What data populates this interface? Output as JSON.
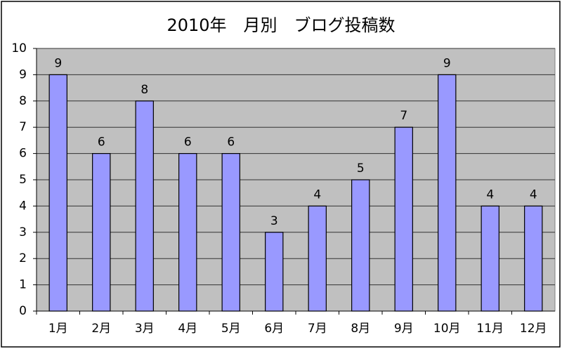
{
  "chart_data": {
    "type": "bar",
    "title": "2010年　月別　ブログ投稿数",
    "categories": [
      "1月",
      "2月",
      "3月",
      "4月",
      "5月",
      "6月",
      "7月",
      "8月",
      "9月",
      "10月",
      "11月",
      "12月"
    ],
    "values": [
      9,
      6,
      8,
      6,
      6,
      3,
      4,
      5,
      7,
      9,
      4,
      4
    ],
    "color": "#9999ff",
    "ylim": [
      0,
      10
    ],
    "yticks": [
      0,
      1,
      2,
      3,
      4,
      5,
      6,
      7,
      8,
      9,
      10
    ],
    "grid": true
  }
}
